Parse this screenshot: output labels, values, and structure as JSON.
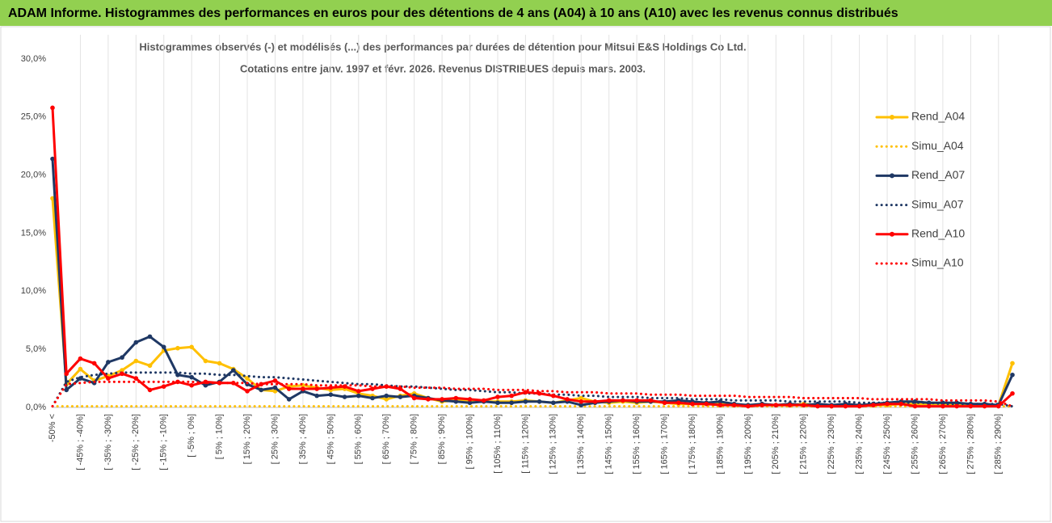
{
  "chart_data": {
    "type": "line",
    "title": "ADAM Informe. Histogrammes des performances en euros pour des détentions de 4 ans (A04) à 10 ans (A10) avec les revenus connus distribués",
    "subtitle": [
      "Histogrammes observés (-) et modélisés (...) des performances par durées de détention pour Mitsui E&S Holdings Co Ltd.",
      "Cotations entre janv. 1997 et févr. 2026. Revenus DISTRIBUES depuis mars. 2003."
    ],
    "categories": [
      "-50% <",
      null,
      "[ -45% ; -40%]",
      null,
      "[ -35% ; -30%]",
      null,
      "[ -25% ; -20%]",
      null,
      "[ -15% ; -10%]",
      null,
      "[ -5% ; 0%]",
      null,
      "[ 5% ; 10%]",
      null,
      "[ 15% ; 20%]",
      null,
      "[ 25% ; 30%]",
      null,
      "[ 35% ; 40%]",
      null,
      "[ 45% ; 50%]",
      null,
      "[ 55% ; 60%]",
      null,
      "[ 65% ; 70%]",
      null,
      "[ 75% ; 80%]",
      null,
      "[ 85% ; 90%]",
      null,
      "[ 95% ; 100%]",
      null,
      "[ 105% ; 110%]",
      null,
      "[ 115% ; 120%]",
      null,
      "[ 125% ; 130%]",
      null,
      "[ 135% ; 140%]",
      null,
      "[ 145% ; 150%]",
      null,
      "[ 155% ; 160%]",
      null,
      "[ 165% ; 170%]",
      null,
      "[ 175% ; 180%]",
      null,
      "[ 185% ; 190%]",
      null,
      "[ 195% ; 200%]",
      null,
      "[ 205% ; 210%]",
      null,
      "[ 215% ; 220%]",
      null,
      "[ 225% ; 230%]",
      null,
      "[ 235% ; 240%]",
      null,
      "[ 245% ; 250%]",
      null,
      "[ 255% ; 260%]",
      null,
      "[ 265% ; 270%]",
      null,
      "[ 275% ; 280%]",
      null,
      "[ 285% ; 290%]",
      null
    ],
    "series": [
      {
        "name": "Rend_A04",
        "color": "#ffc000",
        "dotted": false,
        "marker": true,
        "values": [
          18.0,
          2.0,
          3.3,
          2.3,
          2.7,
          3.2,
          4.0,
          3.6,
          4.9,
          5.1,
          5.2,
          4.0,
          3.8,
          3.3,
          2.5,
          1.5,
          1.4,
          1.8,
          1.9,
          1.7,
          1.5,
          1.6,
          1.2,
          1.0,
          0.7,
          1.0,
          1.2,
          0.8,
          0.5,
          0.6,
          0.6,
          0.5,
          0.5,
          0.5,
          0.6,
          0.5,
          0.4,
          0.6,
          0.8,
          0.5,
          0.4,
          0.5,
          0.4,
          0.5,
          0.4,
          0.3,
          0.3,
          0.3,
          0.3,
          0.2,
          0.2,
          0.2,
          0.2,
          0.2,
          0.3,
          0.2,
          0.1,
          0.2,
          0.2,
          0.2,
          0.2,
          0.3,
          0.3,
          0.3,
          0.3,
          0.2,
          0.2,
          0.2,
          0.2,
          3.8
        ]
      },
      {
        "name": "Simu_A04",
        "color": "#ffc000",
        "dotted": true,
        "marker": false,
        "values": [
          0.1,
          0.1,
          0.1,
          0.1,
          0.1,
          0.1,
          0.1,
          0.1,
          0.1,
          0.1,
          0.1,
          0.1,
          0.1,
          0.1,
          0.1,
          0.1,
          0.1,
          0.1,
          0.1,
          0.1,
          0.1,
          0.1,
          0.1,
          0.1,
          0.1,
          0.1,
          0.1,
          0.1,
          0.1,
          0.1,
          0.1,
          0.1,
          0.1,
          0.1,
          0.1,
          0.1,
          0.1,
          0.1,
          0.1,
          0.1,
          0.1,
          0.1,
          0.1,
          0.1,
          0.1,
          0.1,
          0.1,
          0.1,
          0.1,
          0.1,
          0.1,
          0.1,
          0.1,
          0.1,
          0.1,
          0.1,
          0.1,
          0.1,
          0.1,
          0.1,
          0.1,
          0.1,
          0.1,
          0.1,
          0.1,
          0.1,
          0.1,
          0.1,
          0.1,
          0.1
        ]
      },
      {
        "name": "Rend_A07",
        "color": "#1f3864",
        "dotted": false,
        "marker": true,
        "values": [
          21.4,
          1.5,
          2.5,
          2.1,
          3.9,
          4.3,
          5.6,
          6.1,
          5.2,
          2.8,
          2.6,
          1.9,
          2.2,
          3.2,
          2.0,
          1.5,
          1.7,
          0.7,
          1.4,
          1.0,
          1.1,
          0.9,
          1.0,
          0.8,
          1.0,
          0.9,
          1.0,
          0.8,
          0.6,
          0.5,
          0.4,
          0.5,
          0.4,
          0.4,
          0.5,
          0.5,
          0.4,
          0.5,
          0.2,
          0.4,
          0.5,
          0.6,
          0.5,
          0.5,
          0.5,
          0.6,
          0.5,
          0.4,
          0.5,
          0.3,
          0.2,
          0.3,
          0.2,
          0.3,
          0.2,
          0.3,
          0.2,
          0.3,
          0.2,
          0.3,
          0.4,
          0.5,
          0.5,
          0.4,
          0.4,
          0.4,
          0.3,
          0.3,
          0.2,
          2.8
        ]
      },
      {
        "name": "Simu_A07",
        "color": "#1f3864",
        "dotted": true,
        "marker": false,
        "values": [
          0.1,
          2.2,
          2.6,
          2.8,
          2.9,
          3.0,
          3.0,
          3.0,
          3.0,
          3.0,
          2.9,
          2.9,
          2.8,
          2.8,
          2.7,
          2.6,
          2.6,
          2.5,
          2.4,
          2.3,
          2.2,
          2.1,
          2.0,
          2.0,
          1.9,
          1.8,
          1.8,
          1.7,
          1.6,
          1.5,
          1.5,
          1.4,
          1.3,
          1.3,
          1.2,
          1.2,
          1.1,
          1.1,
          1.0,
          1.0,
          0.9,
          0.9,
          0.9,
          0.8,
          0.8,
          0.8,
          0.7,
          0.7,
          0.7,
          0.6,
          0.6,
          0.6,
          0.6,
          0.5,
          0.5,
          0.5,
          0.5,
          0.5,
          0.4,
          0.4,
          0.4,
          0.4,
          0.4,
          0.4,
          0.3,
          0.3,
          0.3,
          0.3,
          0.3,
          0.1
        ]
      },
      {
        "name": "Rend_A10",
        "color": "#ff0000",
        "dotted": false,
        "marker": true,
        "values": [
          25.8,
          2.9,
          4.2,
          3.8,
          2.5,
          2.9,
          2.5,
          1.5,
          1.8,
          2.2,
          1.9,
          2.2,
          2.1,
          2.1,
          1.4,
          2.0,
          2.3,
          1.6,
          1.6,
          1.6,
          1.7,
          1.8,
          1.4,
          1.6,
          1.8,
          1.6,
          0.8,
          0.7,
          0.7,
          0.8,
          0.7,
          0.6,
          0.9,
          1.0,
          1.3,
          1.2,
          1.0,
          0.7,
          0.5,
          0.5,
          0.6,
          0.6,
          0.6,
          0.6,
          0.4,
          0.4,
          0.3,
          0.3,
          0.2,
          0.2,
          0.1,
          0.2,
          0.2,
          0.2,
          0.2,
          0.1,
          0.1,
          0.1,
          0.1,
          0.2,
          0.3,
          0.3,
          0.1,
          0.1,
          0.1,
          0.1,
          0.1,
          0.1,
          0.1,
          1.2
        ]
      },
      {
        "name": "Simu_A10",
        "color": "#ff0000",
        "dotted": true,
        "marker": false,
        "values": [
          0.1,
          2.0,
          2.1,
          2.2,
          2.2,
          2.2,
          2.2,
          2.2,
          2.2,
          2.2,
          2.2,
          2.1,
          2.1,
          2.1,
          2.1,
          2.0,
          2.0,
          2.0,
          2.0,
          1.9,
          1.9,
          1.9,
          1.9,
          1.8,
          1.8,
          1.8,
          1.7,
          1.7,
          1.7,
          1.6,
          1.6,
          1.6,
          1.5,
          1.5,
          1.5,
          1.4,
          1.4,
          1.3,
          1.3,
          1.3,
          1.2,
          1.2,
          1.2,
          1.1,
          1.1,
          1.1,
          1.0,
          1.0,
          1.0,
          1.0,
          0.9,
          0.9,
          0.9,
          0.9,
          0.8,
          0.8,
          0.8,
          0.8,
          0.8,
          0.7,
          0.7,
          0.7,
          0.7,
          0.7,
          0.6,
          0.6,
          0.6,
          0.6,
          0.5,
          0.1
        ]
      }
    ],
    "ylim": [
      0,
      30
    ],
    "yticks": [
      {
        "value": 0,
        "label": "0,0%"
      },
      {
        "value": 5,
        "label": "5,0%"
      },
      {
        "value": 10,
        "label": "10,0%"
      },
      {
        "value": 15,
        "label": "15,0%"
      },
      {
        "value": 20,
        "label": "20,0%"
      },
      {
        "value": 25,
        "label": "25,0%"
      },
      {
        "value": 30,
        "label": "30,0%"
      }
    ],
    "grid": "x",
    "legend": "right"
  }
}
